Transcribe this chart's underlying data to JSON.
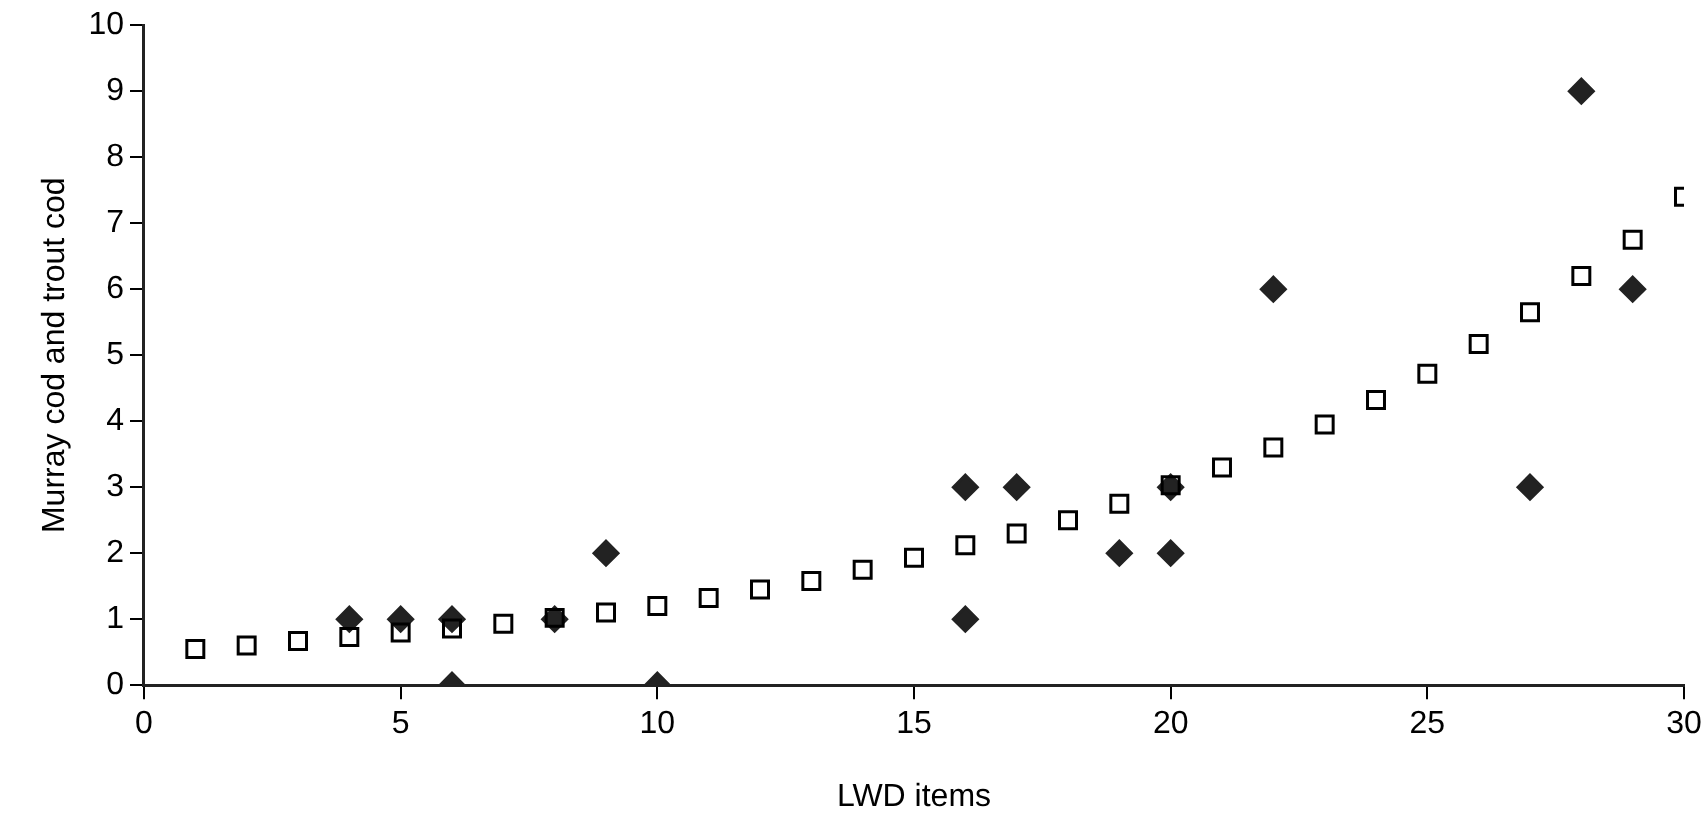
{
  "chart_data": {
    "type": "scatter",
    "xlabel": "LWD items",
    "ylabel": "Murray cod and trout cod",
    "xlim": [
      0,
      30
    ],
    "xticks": [
      0,
      5,
      10,
      15,
      20,
      25,
      30
    ],
    "ylim": [
      0,
      10
    ],
    "yticks": [
      0,
      1,
      2,
      3,
      4,
      5,
      6,
      7,
      8,
      9,
      10
    ],
    "grid": false,
    "legend": false,
    "series": [
      {
        "color": "#000000",
        "marker": "square",
        "x": [
          1,
          2,
          3,
          4,
          5,
          6,
          7,
          8,
          9,
          10,
          11,
          12,
          13,
          14,
          15,
          16,
          17,
          18,
          19,
          20,
          21,
          22,
          23,
          24,
          25,
          26,
          27,
          28,
          29,
          30
        ],
        "values": [
          0.55,
          0.6,
          0.67,
          0.73,
          0.8,
          0.86,
          0.93,
          1.02,
          1.1,
          1.2,
          1.32,
          1.45,
          1.58,
          1.75,
          1.93,
          2.12,
          2.3,
          2.5,
          2.75,
          3.03,
          3.3,
          3.6,
          3.95,
          4.32,
          4.72,
          5.17,
          5.65,
          6.2,
          6.75,
          7.4
        ]
      },
      {
        "color": "#222222",
        "marker": "diamond",
        "x": [
          4,
          5,
          6,
          6,
          8,
          9,
          10,
          16,
          16,
          17,
          19,
          20,
          20,
          22,
          27,
          28,
          29
        ],
        "values": [
          1,
          1,
          1,
          0,
          1,
          2,
          0,
          3,
          1,
          3,
          2,
          2,
          3,
          6,
          3,
          9,
          6
        ]
      }
    ]
  }
}
